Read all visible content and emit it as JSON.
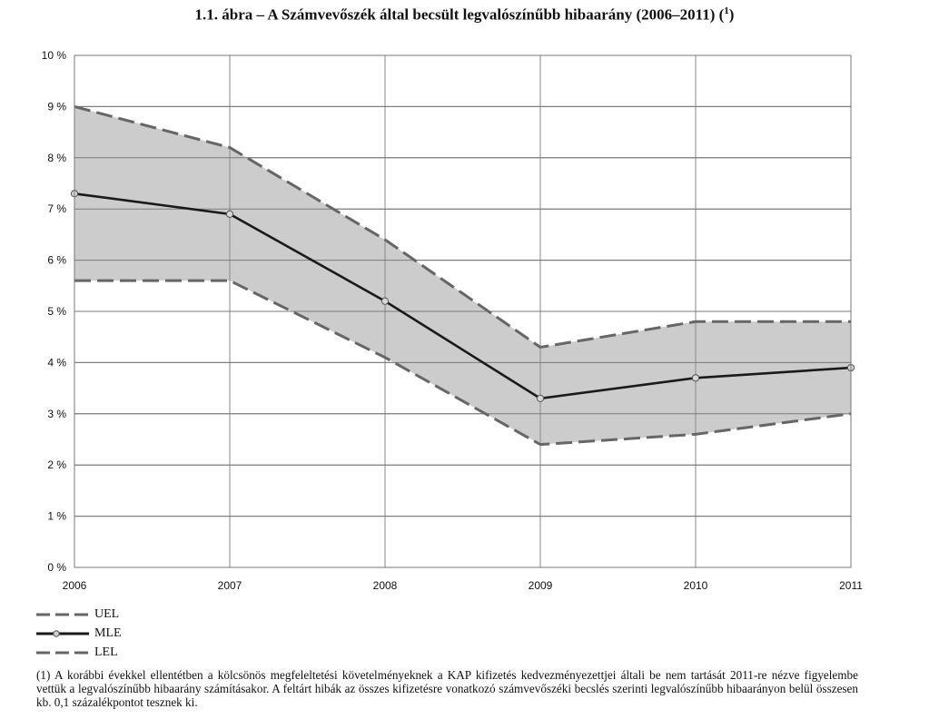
{
  "title": {
    "text": "1.1. ábra – A Számvevőszék által becsült legvalószínűbb hibaarány (2006–2011) (",
    "sup": "1",
    "close": ")"
  },
  "chart_data": {
    "type": "line",
    "title": "1.1. ábra – A Számvevőszék által becsült legvalószínűbb hibaarány (2006–2011) (1)",
    "categories": [
      "2006",
      "2007",
      "2008",
      "2009",
      "2010",
      "2011"
    ],
    "yticks": [
      "0 %",
      "1 %",
      "2 %",
      "3 %",
      "4 %",
      "5 %",
      "6 %",
      "7 %",
      "8 %",
      "9 %",
      "10 %"
    ],
    "ylim": [
      0,
      10
    ],
    "grid": true,
    "band_fill": "#cccccc",
    "series": [
      {
        "name": "UEL",
        "values": [
          9.0,
          8.2,
          6.4,
          4.3,
          4.8,
          4.8
        ],
        "style": "dashed",
        "color": "#666666"
      },
      {
        "name": "MLE",
        "values": [
          7.3,
          6.9,
          5.2,
          3.3,
          3.7,
          3.9
        ],
        "style": "solid-markers",
        "color": "#1a1a1a"
      },
      {
        "name": "LEL",
        "values": [
          5.6,
          5.6,
          4.1,
          2.4,
          2.6,
          3.0
        ],
        "style": "dashed",
        "color": "#666666"
      }
    ],
    "legend_position": "bottom-left"
  },
  "legend": [
    {
      "label": "UEL"
    },
    {
      "label": "MLE"
    },
    {
      "label": "LEL"
    }
  ],
  "footnote": {
    "mark": "(1)",
    "text": "A korábbi évekkel ellentétben a kölcsönös megfeleltetési követelményeknek a KAP kifizetés kedvezményezettjei általi be nem tartását 2011-re nézve figyelembe vettük a legvalószínűbb hibaarány számításakor. A feltárt hibák az összes kifizetésre vonatkozó számvevőszéki becslés szerinti legvalószínűbb hibaarányon belül összesen kb. 0,1 százalékpontot tesznek ki."
  }
}
